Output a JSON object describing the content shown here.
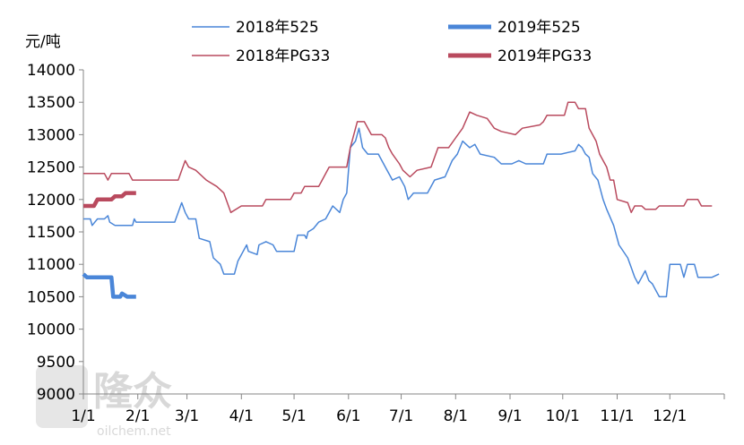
{
  "chart_data": {
    "type": "line",
    "title": "",
    "unit_label": "元/吨",
    "xlabel": "",
    "ylabel": "元/吨",
    "ylim": [
      9000,
      14000
    ],
    "yticks": [
      9000,
      9500,
      10000,
      10500,
      11000,
      11500,
      12000,
      12500,
      13000,
      13500,
      14000
    ],
    "xlim": [
      0,
      365
    ],
    "xticks": [
      {
        "label": "1/1",
        "day": 0
      },
      {
        "label": "2/1",
        "day": 31
      },
      {
        "label": "3/1",
        "day": 59
      },
      {
        "label": "4/1",
        "day": 90
      },
      {
        "label": "5/1",
        "day": 120
      },
      {
        "label": "6/1",
        "day": 151
      },
      {
        "label": "7/1",
        "day": 181
      },
      {
        "label": "8/1",
        "day": 212
      },
      {
        "label": "9/1",
        "day": 243
      },
      {
        "label": "10/1",
        "day": 273
      },
      {
        "label": "11/1",
        "day": 304
      },
      {
        "label": "12/1",
        "day": 334
      }
    ],
    "grid": false,
    "legend_position": "top",
    "series": [
      {
        "name": "2018年525",
        "color": "#4a86d8",
        "style": "thin",
        "points": [
          [
            0,
            11700
          ],
          [
            4,
            11700
          ],
          [
            5,
            11600
          ],
          [
            8,
            11700
          ],
          [
            12,
            11700
          ],
          [
            14,
            11750
          ],
          [
            15,
            11650
          ],
          [
            18,
            11600
          ],
          [
            28,
            11600
          ],
          [
            29,
            11700
          ],
          [
            30,
            11650
          ],
          [
            52,
            11650
          ],
          [
            54,
            11800
          ],
          [
            56,
            11950
          ],
          [
            58,
            11800
          ],
          [
            60,
            11700
          ],
          [
            64,
            11700
          ],
          [
            66,
            11400
          ],
          [
            72,
            11350
          ],
          [
            74,
            11100
          ],
          [
            78,
            11000
          ],
          [
            80,
            10850
          ],
          [
            86,
            10850
          ],
          [
            88,
            11050
          ],
          [
            91,
            11200
          ],
          [
            93,
            11300
          ],
          [
            94,
            11200
          ],
          [
            99,
            11150
          ],
          [
            100,
            11300
          ],
          [
            104,
            11350
          ],
          [
            108,
            11300
          ],
          [
            110,
            11200
          ],
          [
            120,
            11200
          ],
          [
            122,
            11450
          ],
          [
            126,
            11450
          ],
          [
            127,
            11400
          ],
          [
            128,
            11500
          ],
          [
            131,
            11550
          ],
          [
            134,
            11650
          ],
          [
            138,
            11700
          ],
          [
            142,
            11900
          ],
          [
            146,
            11800
          ],
          [
            148,
            12000
          ],
          [
            150,
            12100
          ],
          [
            152,
            12800
          ],
          [
            155,
            12900
          ],
          [
            157,
            13100
          ],
          [
            159,
            12800
          ],
          [
            162,
            12700
          ],
          [
            168,
            12700
          ],
          [
            172,
            12500
          ],
          [
            176,
            12300
          ],
          [
            180,
            12350
          ],
          [
            183,
            12200
          ],
          [
            185,
            12000
          ],
          [
            188,
            12100
          ],
          [
            196,
            12100
          ],
          [
            200,
            12300
          ],
          [
            206,
            12350
          ],
          [
            210,
            12600
          ],
          [
            213,
            12700
          ],
          [
            216,
            12900
          ],
          [
            220,
            12800
          ],
          [
            223,
            12850
          ],
          [
            226,
            12700
          ],
          [
            234,
            12650
          ],
          [
            238,
            12550
          ],
          [
            244,
            12550
          ],
          [
            248,
            12600
          ],
          [
            252,
            12550
          ],
          [
            262,
            12550
          ],
          [
            264,
            12700
          ],
          [
            268,
            12700
          ],
          [
            272,
            12700
          ],
          [
            280,
            12750
          ],
          [
            282,
            12850
          ],
          [
            284,
            12800
          ],
          [
            286,
            12700
          ],
          [
            288,
            12650
          ],
          [
            290,
            12400
          ],
          [
            293,
            12300
          ],
          [
            296,
            12000
          ],
          [
            298,
            11850
          ],
          [
            302,
            11600
          ],
          [
            305,
            11300
          ],
          [
            310,
            11100
          ],
          [
            312,
            10950
          ],
          [
            314,
            10800
          ],
          [
            316,
            10700
          ],
          [
            318,
            10800
          ],
          [
            320,
            10900
          ],
          [
            322,
            10750
          ],
          [
            324,
            10700
          ],
          [
            326,
            10600
          ],
          [
            328,
            10500
          ],
          [
            332,
            10500
          ],
          [
            334,
            11000
          ],
          [
            340,
            11000
          ],
          [
            342,
            10800
          ],
          [
            344,
            11000
          ],
          [
            348,
            11000
          ],
          [
            350,
            10800
          ],
          [
            358,
            10800
          ],
          [
            362,
            10850
          ]
        ]
      },
      {
        "name": "2019年525",
        "color": "#4a86d8",
        "style": "thick",
        "points": [
          [
            0,
            10850
          ],
          [
            2,
            10800
          ],
          [
            16,
            10800
          ],
          [
            17,
            10500
          ],
          [
            21,
            10500
          ],
          [
            22,
            10550
          ],
          [
            25,
            10500
          ],
          [
            30,
            10500
          ]
        ]
      },
      {
        "name": "2018年PG33",
        "color": "#b94a5e",
        "style": "thin",
        "points": [
          [
            0,
            12400
          ],
          [
            12,
            12400
          ],
          [
            14,
            12300
          ],
          [
            16,
            12400
          ],
          [
            26,
            12400
          ],
          [
            28,
            12300
          ],
          [
            54,
            12300
          ],
          [
            56,
            12450
          ],
          [
            58,
            12600
          ],
          [
            60,
            12500
          ],
          [
            64,
            12450
          ],
          [
            66,
            12400
          ],
          [
            70,
            12300
          ],
          [
            76,
            12200
          ],
          [
            80,
            12100
          ],
          [
            84,
            11800
          ],
          [
            90,
            11900
          ],
          [
            102,
            11900
          ],
          [
            104,
            12000
          ],
          [
            118,
            12000
          ],
          [
            120,
            12100
          ],
          [
            124,
            12100
          ],
          [
            126,
            12200
          ],
          [
            134,
            12200
          ],
          [
            136,
            12300
          ],
          [
            140,
            12500
          ],
          [
            150,
            12500
          ],
          [
            152,
            12800
          ],
          [
            156,
            13200
          ],
          [
            160,
            13200
          ],
          [
            164,
            13000
          ],
          [
            170,
            13000
          ],
          [
            172,
            12950
          ],
          [
            174,
            12800
          ],
          [
            176,
            12700
          ],
          [
            180,
            12550
          ],
          [
            182,
            12450
          ],
          [
            186,
            12350
          ],
          [
            190,
            12450
          ],
          [
            198,
            12500
          ],
          [
            202,
            12800
          ],
          [
            208,
            12800
          ],
          [
            212,
            12950
          ],
          [
            216,
            13100
          ],
          [
            220,
            13350
          ],
          [
            224,
            13300
          ],
          [
            230,
            13250
          ],
          [
            234,
            13100
          ],
          [
            238,
            13050
          ],
          [
            246,
            13000
          ],
          [
            250,
            13100
          ],
          [
            260,
            13150
          ],
          [
            262,
            13200
          ],
          [
            264,
            13300
          ],
          [
            274,
            13300
          ],
          [
            276,
            13500
          ],
          [
            280,
            13500
          ],
          [
            282,
            13400
          ],
          [
            286,
            13400
          ],
          [
            288,
            13100
          ],
          [
            290,
            13000
          ],
          [
            292,
            12900
          ],
          [
            294,
            12700
          ],
          [
            298,
            12500
          ],
          [
            300,
            12300
          ],
          [
            302,
            12300
          ],
          [
            304,
            12000
          ],
          [
            310,
            11950
          ],
          [
            312,
            11800
          ],
          [
            314,
            11900
          ],
          [
            318,
            11900
          ],
          [
            320,
            11850
          ],
          [
            326,
            11850
          ],
          [
            328,
            11900
          ],
          [
            342,
            11900
          ],
          [
            344,
            12000
          ],
          [
            350,
            12000
          ],
          [
            352,
            11900
          ],
          [
            358,
            11900
          ]
        ]
      },
      {
        "name": "2019年PG33",
        "color": "#b94a5e",
        "style": "thick",
        "points": [
          [
            0,
            11900
          ],
          [
            6,
            11900
          ],
          [
            8,
            12000
          ],
          [
            16,
            12000
          ],
          [
            18,
            12050
          ],
          [
            22,
            12050
          ],
          [
            24,
            12100
          ],
          [
            30,
            12100
          ]
        ]
      }
    ]
  },
  "legend": {
    "items": [
      {
        "label": "2018年525"
      },
      {
        "label": "2019年525"
      },
      {
        "label": "2018年PG33"
      },
      {
        "label": "2019年PG33"
      }
    ]
  },
  "watermark": {
    "brand": "隆众",
    "site": "oilchem.net"
  }
}
